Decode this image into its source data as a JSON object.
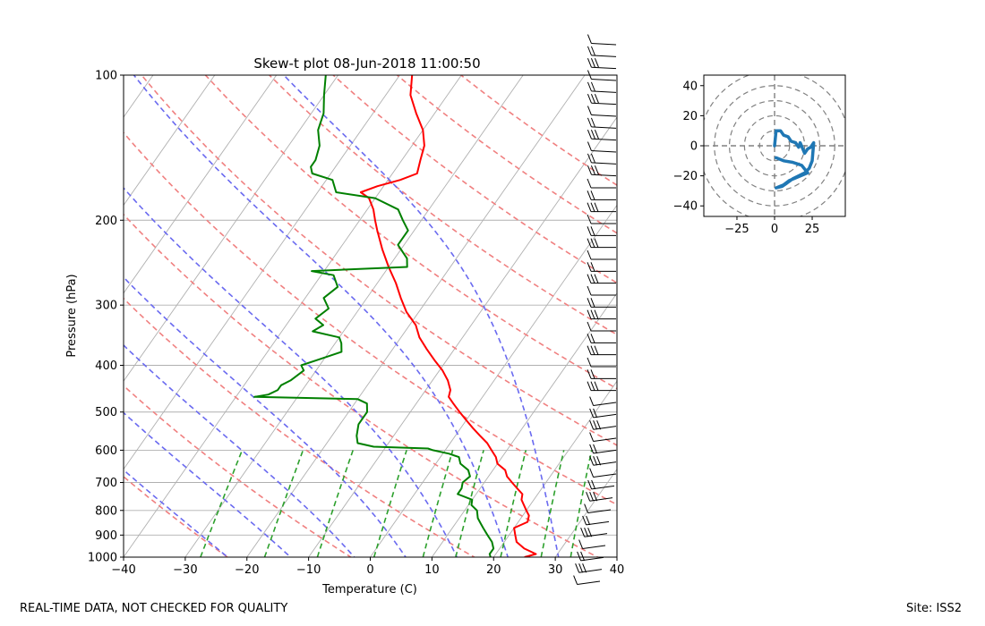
{
  "footer": {
    "left": "REAL-TIME DATA, NOT CHECKED FOR QUALITY",
    "right": "Site: ISS2"
  },
  "chart_data": [
    {
      "type": "line",
      "subtype": "skew-t",
      "title": "Skew-t plot 08-Jun-2018 11:00:50",
      "xlabel": "Temperature (C)",
      "ylabel": "Pressure (hPa)",
      "xlim": [
        -40,
        40
      ],
      "ylim": [
        1000,
        100
      ],
      "yscale": "log",
      "x_ticks": [
        "−40",
        "−30",
        "−20",
        "−10",
        "0",
        "10",
        "20",
        "30",
        "40"
      ],
      "y_ticks": [
        "100",
        "200",
        "300",
        "400",
        "500",
        "600",
        "700",
        "800",
        "900",
        "1000"
      ],
      "grid": true,
      "colors": {
        "temperature": "#ff0000",
        "dewpoint": "#008000",
        "dry_adiabats": "#f08080",
        "moist_adiabats": "#6a6af0",
        "mixing_ratio": "#2ca02c",
        "isotherms": "#b0b0b0",
        "wind_barbs": "#000000"
      },
      "series": [
        {
          "name": "Temperature",
          "points": [
            [
              1000,
              25
            ],
            [
              985,
              26.5
            ],
            [
              960,
              24
            ],
            [
              930,
              22
            ],
            [
              900,
              21
            ],
            [
              870,
              20
            ],
            [
              845,
              21.5
            ],
            [
              820,
              21
            ],
            [
              800,
              20
            ],
            [
              780,
              19
            ],
            [
              760,
              18
            ],
            [
              740,
              17.5
            ],
            [
              720,
              16
            ],
            [
              700,
              14.5
            ],
            [
              680,
              13
            ],
            [
              660,
              12
            ],
            [
              640,
              10
            ],
            [
              620,
              9
            ],
            [
              600,
              7.5
            ],
            [
              580,
              6
            ],
            [
              560,
              4
            ],
            [
              540,
              2
            ],
            [
              520,
              0
            ],
            [
              500,
              -2
            ],
            [
              480,
              -4
            ],
            [
              465,
              -5.5
            ],
            [
              450,
              -6
            ],
            [
              430,
              -7.5
            ],
            [
              410,
              -9.5
            ],
            [
              390,
              -12
            ],
            [
              370,
              -14.5
            ],
            [
              350,
              -17
            ],
            [
              330,
              -19
            ],
            [
              310,
              -22
            ],
            [
              290,
              -24.5
            ],
            [
              270,
              -27
            ],
            [
              250,
              -30
            ],
            [
              230,
              -33
            ],
            [
              210,
              -36
            ],
            [
              200,
              -37.5
            ],
            [
              190,
              -39
            ],
            [
              180,
              -41
            ],
            [
              175,
              -43
            ],
            [
              170,
              -41
            ],
            [
              165,
              -38
            ],
            [
              160,
              -36
            ],
            [
              150,
              -37
            ],
            [
              140,
              -38
            ],
            [
              130,
              -40
            ],
            [
              120,
              -43
            ],
            [
              110,
              -46
            ],
            [
              100,
              -48
            ]
          ]
        },
        {
          "name": "Dewpoint",
          "points": [
            [
              1000,
              19.5
            ],
            [
              985,
              19
            ],
            [
              960,
              19
            ],
            [
              930,
              18
            ],
            [
              900,
              16.5
            ],
            [
              870,
              15
            ],
            [
              850,
              14
            ],
            [
              830,
              13
            ],
            [
              800,
              12
            ],
            [
              780,
              10.5
            ],
            [
              760,
              10
            ],
            [
              740,
              7
            ],
            [
              720,
              7
            ],
            [
              700,
              6.5
            ],
            [
              680,
              7
            ],
            [
              660,
              6
            ],
            [
              640,
              4
            ],
            [
              620,
              3
            ],
            [
              610,
              1
            ],
            [
              600,
              -2
            ],
            [
              595,
              -3
            ],
            [
              590,
              -12
            ],
            [
              580,
              -15
            ],
            [
              560,
              -16
            ],
            [
              530,
              -17
            ],
            [
              500,
              -17
            ],
            [
              480,
              -18
            ],
            [
              470,
              -20
            ],
            [
              465,
              -37
            ],
            [
              460,
              -35
            ],
            [
              450,
              -34
            ],
            [
              440,
              -34
            ],
            [
              430,
              -33
            ],
            [
              410,
              -32
            ],
            [
              400,
              -33
            ],
            [
              390,
              -31
            ],
            [
              375,
              -28
            ],
            [
              360,
              -29
            ],
            [
              350,
              -30
            ],
            [
              340,
              -35
            ],
            [
              330,
              -34
            ],
            [
              320,
              -36
            ],
            [
              305,
              -35
            ],
            [
              290,
              -37
            ],
            [
              275,
              -36
            ],
            [
              260,
              -38
            ],
            [
              255,
              -42
            ],
            [
              250,
              -27
            ],
            [
              240,
              -28
            ],
            [
              225,
              -31
            ],
            [
              210,
              -31
            ],
            [
              200,
              -33
            ],
            [
              190,
              -35
            ],
            [
              180,
              -40
            ],
            [
              175,
              -47
            ],
            [
              165,
              -49
            ],
            [
              160,
              -53
            ],
            [
              155,
              -54
            ],
            [
              150,
              -54
            ],
            [
              140,
              -55
            ],
            [
              130,
              -57
            ],
            [
              120,
              -58
            ],
            [
              110,
              -60
            ],
            [
              100,
              -62
            ]
          ]
        }
      ],
      "dry_adiabats_theta_K": [
        210,
        230,
        250,
        270,
        290,
        310,
        330,
        350,
        370,
        390,
        410,
        430,
        450
      ],
      "moist_adiabats_thetae_C": [
        -20,
        -10,
        0,
        8,
        16,
        24,
        32
      ],
      "mixing_ratio_g_per_kg": [
        0.4,
        1,
        2,
        4,
        7,
        10,
        16,
        24,
        32
      ],
      "wind_barbs_on_right": true
    },
    {
      "type": "line",
      "subtype": "hodograph",
      "xlim": [
        -47,
        47
      ],
      "ylim": [
        -47,
        47
      ],
      "x_ticks": [
        "−25",
        "0",
        "25"
      ],
      "y_ticks": [
        "40",
        "20",
        "0",
        "−20",
        "−40"
      ],
      "rings": [
        10,
        20,
        30,
        40,
        50
      ],
      "color": "#1f77b4",
      "points": [
        [
          0,
          0
        ],
        [
          1,
          10
        ],
        [
          4,
          10
        ],
        [
          6,
          7
        ],
        [
          9,
          6
        ],
        [
          11,
          3
        ],
        [
          14,
          2
        ],
        [
          16,
          -1
        ],
        [
          17,
          2
        ],
        [
          20,
          -5
        ],
        [
          22,
          -2
        ],
        [
          24,
          -1
        ],
        [
          26,
          2
        ],
        [
          25,
          -10
        ],
        [
          23,
          -15
        ],
        [
          20,
          -18
        ],
        [
          12,
          -22
        ],
        [
          8,
          -25
        ],
        [
          5,
          -27
        ],
        [
          1,
          -28
        ],
        [
          6,
          -26
        ],
        [
          10,
          -23
        ],
        [
          15,
          -21
        ],
        [
          22,
          -18
        ],
        [
          18,
          -13
        ],
        [
          12,
          -11
        ],
        [
          6,
          -10
        ],
        [
          1,
          -8
        ]
      ]
    }
  ]
}
